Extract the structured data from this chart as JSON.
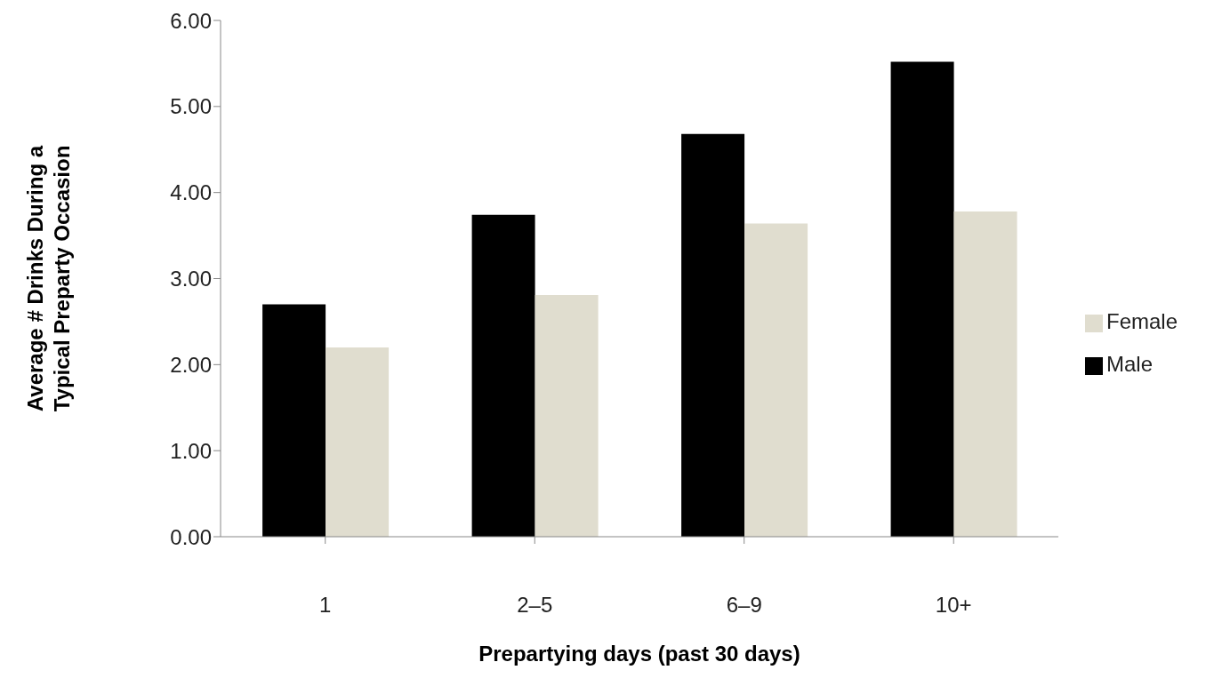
{
  "chart_data": {
    "type": "bar",
    "xlabel": "Prepartying days (past 30 days)",
    "ylabel": "Average # Drinks During a Typical Preparty Occasion",
    "categories": [
      "1",
      "2–5",
      "6–9",
      "10+"
    ],
    "series": [
      {
        "name": "Male",
        "color": "#000000",
        "values": [
          2.7,
          3.74,
          4.68,
          5.52
        ]
      },
      {
        "name": "Female",
        "color": "#e0ddcf",
        "values": [
          2.2,
          2.81,
          3.64,
          3.78
        ]
      }
    ],
    "ylim": [
      0,
      6
    ],
    "yticks": [
      {
        "value": 0,
        "label": "0.00"
      },
      {
        "value": 1,
        "label": "1.00"
      },
      {
        "value": 2,
        "label": "2.00"
      },
      {
        "value": 3,
        "label": "3.00"
      },
      {
        "value": 4,
        "label": "4.00"
      },
      {
        "value": 5,
        "label": "5.00"
      },
      {
        "value": 6,
        "label": "6.00"
      }
    ],
    "grid": false,
    "legend": "right"
  }
}
